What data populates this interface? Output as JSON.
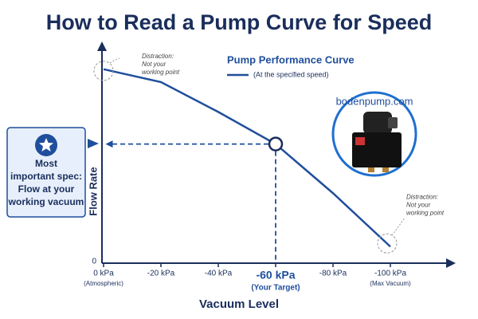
{
  "chart_data": {
    "type": "line",
    "title": "How to Read a Pump Curve for Speed",
    "x_label": "Vacuum Level",
    "y_label": "Flow Rate",
    "x": [
      0,
      -20,
      -40,
      -60,
      -80,
      -100
    ],
    "series": [
      {
        "name": "Pump Performance Curve",
        "color": "#1f4e9c",
        "values": [
          90,
          84,
          70,
          55,
          32,
          7
        ]
      }
    ],
    "legend_subtitle": "(At the specified speed)",
    "xlim": [
      0,
      -120
    ],
    "ylim": [
      0,
      100
    ],
    "xticks": [
      {
        "value": 0,
        "label": "0 kPa"
      },
      {
        "value": -20,
        "label": "-20 kPa"
      },
      {
        "value": -40,
        "label": "-40 kPa"
      },
      {
        "value": -60,
        "label": "-60 kPa"
      },
      {
        "value": -80,
        "label": "-80 kPa"
      },
      {
        "value": -100,
        "label": "-100 kPa"
      }
    ],
    "yticks": [
      0
    ],
    "x_tick_notes": [
      {
        "x": 0,
        "text": "(Atmospheric)"
      },
      {
        "x": -60,
        "text": "(Your Target)"
      },
      {
        "x": -100,
        "text": "(Max Vacuum)"
      }
    ],
    "highlight_x": -60,
    "working_point": {
      "x": -60,
      "y": 55
    },
    "annotations": [
      {
        "x": 0,
        "y": 90,
        "title": "Distraction:",
        "lines": [
          "Not your",
          "working point"
        ]
      },
      {
        "x": -100,
        "y": 7,
        "title": "Distraction:",
        "lines": [
          "Not your",
          "working point"
        ]
      }
    ],
    "callout": {
      "lines": [
        "Most",
        "important spec:",
        "Flow at your",
        "working vacuum"
      ]
    },
    "logo_text": "bodenpump.com"
  }
}
